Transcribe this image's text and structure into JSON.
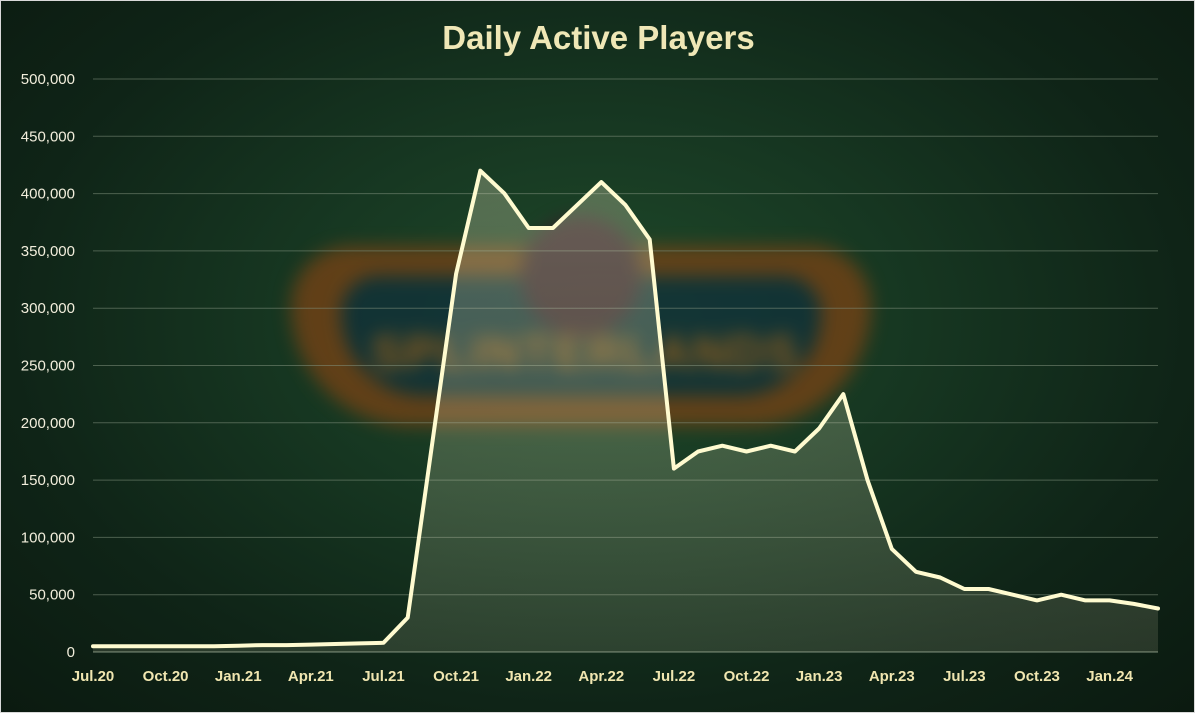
{
  "chart_data": {
    "type": "area",
    "title": "Daily Active Players",
    "xlabel": "",
    "ylabel": "",
    "ylim": [
      0,
      500000
    ],
    "yticks": [
      "0",
      "50,000",
      "100,000",
      "150,000",
      "200,000",
      "250,000",
      "300,000",
      "350,000",
      "400,000",
      "450,000",
      "500,000"
    ],
    "xtick_labels": [
      "Jul.20",
      "Oct.20",
      "Jan.21",
      "Apr.21",
      "Jul.21",
      "Oct.21",
      "Jan.22",
      "Apr.22",
      "Jul.22",
      "Oct.22",
      "Jan.23",
      "Apr.23",
      "Jul.23",
      "Oct.23",
      "Jan.24"
    ],
    "grid": true,
    "legend": "none",
    "colors": {
      "line": "#fffbd0",
      "fill": "#f5f0c8"
    },
    "x": [
      "Jul.20",
      "Aug.20",
      "Sep.20",
      "Oct.20",
      "Nov.20",
      "Dec.20",
      "Jan.21",
      "Feb.21",
      "Mar.21",
      "Apr.21",
      "May.21",
      "Jun.21",
      "Jul.21",
      "Aug.21",
      "Sep.21",
      "Oct.21",
      "Nov.21",
      "Dec.21",
      "Jan.22",
      "Feb.22",
      "Mar.22",
      "Apr.22",
      "May.22",
      "Jun.22",
      "Jul.22",
      "Aug.22",
      "Sep.22",
      "Oct.22",
      "Nov.22",
      "Dec.22",
      "Jan.23",
      "Feb.23",
      "Mar.23",
      "Apr.23",
      "May.23",
      "Jun.23",
      "Jul.23",
      "Aug.23",
      "Sep.23",
      "Oct.23",
      "Nov.23",
      "Dec.23",
      "Jan.24",
      "Feb.24",
      "Mar.24"
    ],
    "series": [
      {
        "values": [
          5000,
          5000,
          5000,
          5000,
          5000,
          5000,
          5500,
          6000,
          6000,
          6500,
          7000,
          7500,
          8000,
          30000,
          180000,
          330000,
          420000,
          400000,
          370000,
          370000,
          390000,
          410000,
          390000,
          360000,
          160000,
          175000,
          180000,
          175000,
          180000,
          175000,
          195000,
          225000,
          150000,
          90000,
          70000,
          65000,
          55000,
          55000,
          50000,
          45000,
          50000,
          45000,
          45000,
          42000,
          38000
        ]
      }
    ]
  }
}
